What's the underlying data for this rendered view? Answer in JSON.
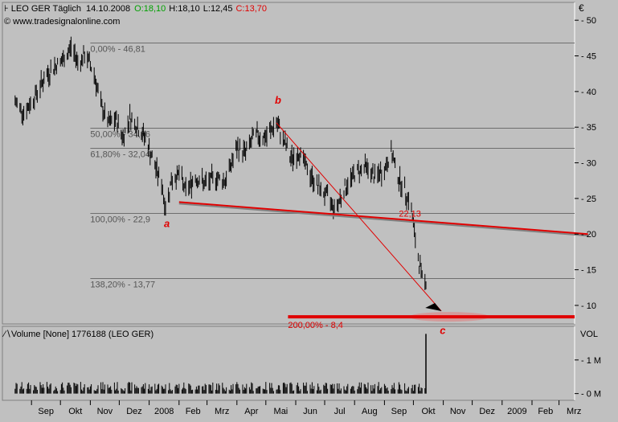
{
  "header": {
    "symbol_icon": "candlestick-icon",
    "title": "LEO GER Täglich",
    "date": "14.10.2008",
    "open": "O:18,10",
    "high": "H:18,10",
    "low": "L:12,45",
    "close": "C:13,70",
    "open_color": "#00a000",
    "close_color": "#e00000",
    "copyright": "© www.tradesignalonline.com"
  },
  "colors": {
    "background": "#c0c0c0",
    "grid": "#808080",
    "price": "#000000",
    "annotation": "#e00000"
  },
  "chart_data": [
    {
      "type": "line",
      "subtype": "ohlc-bars",
      "title": "LEO GER Täglich",
      "currency_label": "€",
      "ylim": [
        7.4,
        52.5
      ],
      "yticks": [
        10,
        15,
        20,
        25,
        30,
        35,
        40,
        45,
        50
      ],
      "x_axis": {
        "labels": [
          "Sep",
          "Okt",
          "Nov",
          "Dez",
          "2008",
          "Feb",
          "Mrz",
          "Apr",
          "Mai",
          "Jun",
          "Jul",
          "Aug",
          "Sep",
          "Okt",
          "Nov",
          "Dez",
          "2009",
          "Feb",
          "Mrz"
        ],
        "months": [
          "2007-09",
          "2007-10",
          "2007-11",
          "2007-12",
          "2008-01",
          "2008-02",
          "2008-03",
          "2008-04",
          "2008-05",
          "2008-06",
          "2008-07",
          "2008-08",
          "2008-09",
          "2008-10",
          "2008-11",
          "2008-12",
          "2009-01",
          "2009-02",
          "2009-03"
        ]
      },
      "price_series": {
        "name": "LEO GER",
        "points": [
          [
            "2007-08-15",
            38.5
          ],
          [
            "2007-08-25",
            37.0
          ],
          [
            "2007-09-05",
            39.5
          ],
          [
            "2007-09-15",
            42.0
          ],
          [
            "2007-09-25",
            43.5
          ],
          [
            "2007-10-05",
            44.5
          ],
          [
            "2007-10-12",
            46.3
          ],
          [
            "2007-10-20",
            44.0
          ],
          [
            "2007-10-27",
            45.2
          ],
          [
            "2007-11-05",
            42.5
          ],
          [
            "2007-11-12",
            38.0
          ],
          [
            "2007-11-20",
            35.5
          ],
          [
            "2007-11-28",
            36.0
          ],
          [
            "2007-12-05",
            33.5
          ],
          [
            "2007-12-12",
            36.5
          ],
          [
            "2007-12-20",
            35.0
          ],
          [
            "2007-12-28",
            33.5
          ],
          [
            "2008-01-07",
            29.5
          ],
          [
            "2008-01-14",
            27.0
          ],
          [
            "2008-01-18",
            23.6
          ],
          [
            "2008-01-24",
            27.5
          ],
          [
            "2008-02-01",
            28.5
          ],
          [
            "2008-02-08",
            26.0
          ],
          [
            "2008-02-18",
            28.0
          ],
          [
            "2008-02-28",
            27.0
          ],
          [
            "2008-03-10",
            28.0
          ],
          [
            "2008-03-20",
            27.5
          ],
          [
            "2008-04-01",
            32.0
          ],
          [
            "2008-04-10",
            31.5
          ],
          [
            "2008-04-20",
            34.0
          ],
          [
            "2008-05-01",
            33.5
          ],
          [
            "2008-05-12",
            35.6
          ],
          [
            "2008-05-20",
            33.0
          ],
          [
            "2008-05-27",
            30.5
          ],
          [
            "2008-06-05",
            31.5
          ],
          [
            "2008-06-15",
            28.5
          ],
          [
            "2008-06-25",
            26.5
          ],
          [
            "2008-07-05",
            25.0
          ],
          [
            "2008-07-12",
            23.5
          ],
          [
            "2008-07-20",
            26.0
          ],
          [
            "2008-08-01",
            28.5
          ],
          [
            "2008-08-12",
            29.5
          ],
          [
            "2008-08-22",
            28.0
          ],
          [
            "2008-09-01",
            29.0
          ],
          [
            "2008-09-08",
            31.5
          ],
          [
            "2008-09-14",
            28.5
          ],
          [
            "2008-09-22",
            26.0
          ],
          [
            "2008-09-28",
            24.5
          ],
          [
            "2008-10-03",
            19.0
          ],
          [
            "2008-10-09",
            14.5
          ],
          [
            "2008-10-12",
            12.8
          ],
          [
            "2008-10-14",
            13.7
          ]
        ]
      },
      "fibonacci_levels": [
        {
          "label": "0,00% - 46,81",
          "value": 46.81
        },
        {
          "label": "50,00% - 34,86",
          "value": 34.86
        },
        {
          "label": "61,80% - 32,04",
          "value": 32.04
        },
        {
          "label": "100,00% - 22,9",
          "value": 22.9
        },
        {
          "label": "138,20% - 13,77",
          "value": 13.77
        }
      ],
      "target_level": {
        "label": "200,00% - 8,4",
        "value": 8.4
      },
      "trendline": {
        "label": "22,13",
        "start": [
          "2008-02-01",
          24.5
        ],
        "end": [
          "2009-03-31",
          20.0
        ]
      },
      "projection": {
        "start": [
          "2008-05-12",
          35.6
        ],
        "end": [
          "2008-10-30",
          9.2
        ]
      },
      "wave_labels": [
        {
          "text": "a",
          "date": "2008-01-18",
          "value": 21.0
        },
        {
          "text": "b",
          "date": "2008-05-12",
          "value": 38.3
        },
        {
          "text": "c",
          "date": "2008-10-30",
          "value": 6.0
        }
      ]
    },
    {
      "type": "bar",
      "title": "Volume [None] 1776188 (LEO GER)",
      "axis_title": "VOL",
      "ylim": [
        -200000,
        2000000
      ],
      "yticks": [
        {
          "label": "0 M",
          "value": 0
        },
        {
          "label": "1 M",
          "value": 1000000
        }
      ],
      "last_bar": {
        "date": "2008-10-14",
        "value": 1776188
      },
      "typical_volume": 250000
    }
  ]
}
